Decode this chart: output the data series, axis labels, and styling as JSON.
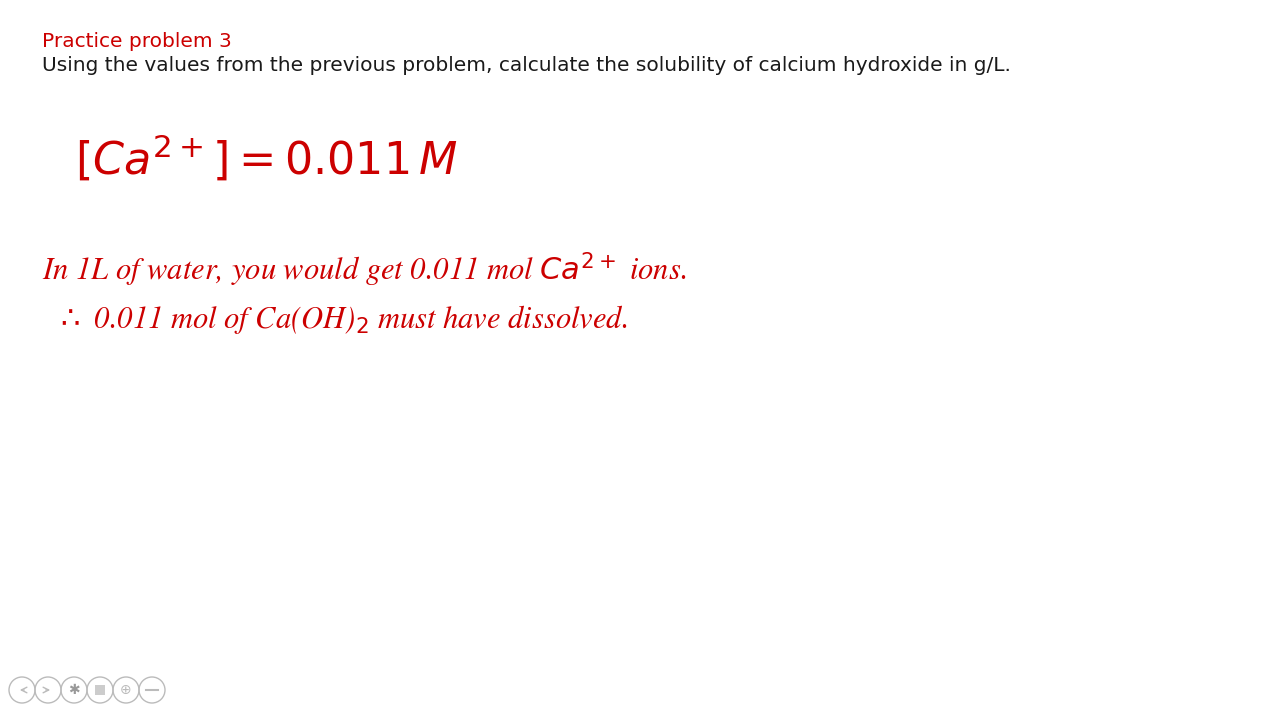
{
  "background_color": "#ffffff",
  "text_color_red": "#cc0000",
  "text_color_black": "#1a1a1a",
  "title_text": "Practice problem 3",
  "subtitle_text": "Using the values from the previous problem, calculate the solubility of calcium hydroxide in g/L.",
  "title_fontsize": 14.5,
  "subtitle_fontsize": 14.5,
  "red": "#cc0000",
  "figsize": [
    12.8,
    7.2
  ],
  "dpi": 100,
  "eq_fontsize": 32,
  "line_fontsize": 22
}
